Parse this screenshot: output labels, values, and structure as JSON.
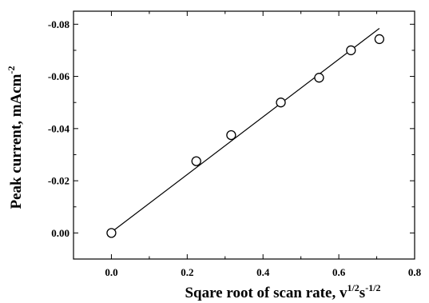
{
  "chart_data": {
    "type": "scatter",
    "title": "",
    "xlabel": {
      "text": "Sqare root of scan rate, v",
      "sup1": "1/2",
      "mid": "s",
      "sup2": "-1/2"
    },
    "ylabel": {
      "text": "Peak current, mAcm",
      "sup": "-2"
    },
    "xlim": [
      -0.1,
      0.8
    ],
    "ylim": [
      0.01,
      -0.085
    ],
    "x_ticks": [
      0.0,
      0.2,
      0.4,
      0.6,
      0.8
    ],
    "x_tick_labels": [
      "0.0",
      "0.2",
      "0.4",
      "0.6",
      "0.8"
    ],
    "y_ticks": [
      0.0,
      -0.02,
      -0.04,
      -0.06,
      -0.08
    ],
    "y_tick_labels": [
      "0.00",
      "-0.02",
      "-0.04",
      "-0.06",
      "-0.08"
    ],
    "grid": false,
    "legend": "none",
    "series": [
      {
        "kind": "points",
        "marker": "open-circle",
        "x": [
          0.0,
          0.224,
          0.316,
          0.447,
          0.548,
          0.632,
          0.707
        ],
        "y": [
          0.0,
          -0.0275,
          -0.0375,
          -0.05,
          -0.0595,
          -0.07,
          -0.0743
        ]
      },
      {
        "kind": "fit-line",
        "x": [
          0.0,
          0.707
        ],
        "y": [
          -0.0003,
          -0.0784
        ]
      }
    ],
    "colors": {
      "axis": "#000000",
      "marker": "#000000",
      "line": "#000000"
    }
  }
}
